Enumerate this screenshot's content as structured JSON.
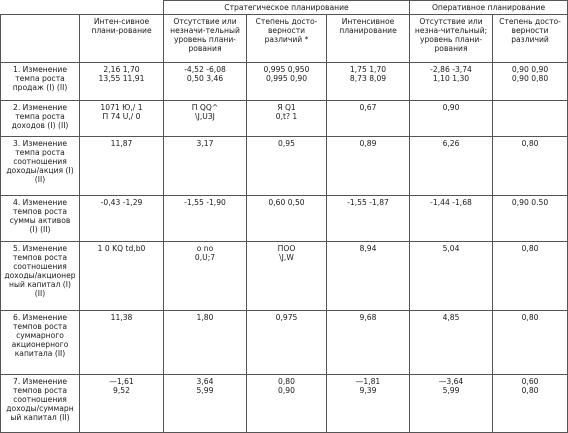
{
  "group_headers": {
    "strategic": "Стратегическое планирование",
    "operational": "Оперативное планирование"
  },
  "column_headers": [
    "Интен-сивное плани-рование",
    "Отсутствие или незначи-тельный уровень плани-рования",
    "Степень досто-верности различий *",
    "Интенсивное планирование",
    "Отсутствие или незна-чительный; уровень плани-рования",
    "Степень досто-верности различий"
  ],
  "rows": [
    {
      "label": "1. Изменение\nтемпа роста\nпродаж (I) (II)",
      "cells": [
        "2,16 1,70\n13,55 11,91",
        "-4,52 -6,08\n0,50 3,46",
        "0,995 0,950\n0,995 0,90",
        "1,75 1,70\n8,73 8,09",
        "-2,86 -3,74\n1,10 1,30",
        "0,90 0,90\n0,90 0,80"
      ]
    },
    {
      "label": "2. Изменение\nтемпа роста\nдоходов (I) (II)",
      "cells": [
        "1071 Ю,/ 1\nП 74 U,/ 0",
        "П QQ^\n\\J,UЗJ",
        "Я Q1\n0,t? 1",
        "0,67",
        "0,90",
        ""
      ]
    },
    {
      "label": "3. Изменение\nтемпа роста\nсоотношения\nдоходы/акция (I)\n(II)",
      "cells": [
        "11,87",
        "3,17",
        "0,95",
        "0,89",
        "6,26",
        "0,80"
      ]
    },
    {
      "label": "4. Изменение\nтемпов роста\nсуммы активов\n(I) (II)",
      "cells": [
        "-0,43 -1,29",
        "-1,55 -1,90",
        "0,60 0,50",
        "-1,55 -1,87",
        "-1,44 -1,68",
        "0,90 0.50"
      ]
    },
    {
      "label": "5. Изменение\nтемпов роста\nсоотношения\nдоходы/акционер\nный капитал (I)\n(II)",
      "cells": [
        "1 0 KQ td,b0",
        "o no\n0,U;7",
        "ПОО\n\\J,W",
        "8,94",
        "5,04",
        "0,80"
      ]
    },
    {
      "label": "6. Изменение\nтемпов роста\nсуммарного\nакционерного\nкапитала (II)",
      "cells": [
        "11,38",
        "1,80",
        "0,975",
        "9,68",
        "4,85",
        "0,80"
      ]
    },
    {
      "label": "7. Изменение\nтемпов роста\nсоотношения\nдоходы/суммарн\nый капитал (II)",
      "cells": [
        "—1,61\n9,52",
        "3,64\n5,99",
        "0,80\n0,90",
        "—1,81\n9,39",
        "—3,64\n5,99",
        "0,60\n0,80"
      ]
    }
  ]
}
